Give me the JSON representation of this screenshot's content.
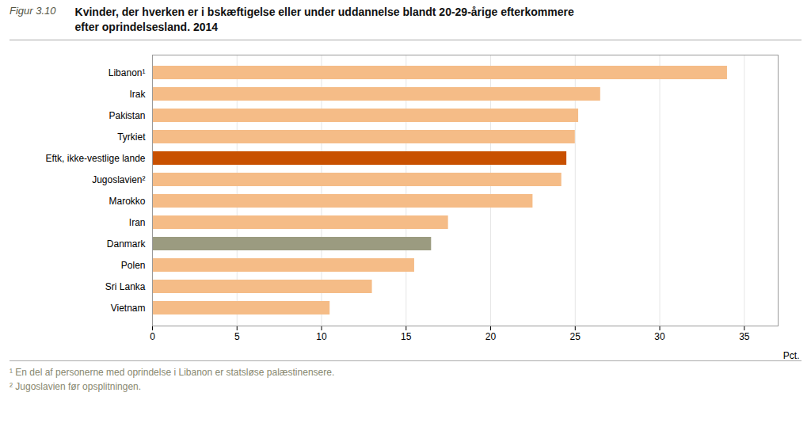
{
  "chart_data": {
    "type": "bar",
    "orientation": "horizontal",
    "figure_label": "Figur 3.10",
    "title": "Kvinder, der hverken er i bskæftigelse eller under uddannelse blandt 20-29-årige efterkommere\nefter oprindelsesland. 2014",
    "categories": [
      "Libanon¹",
      "Irak",
      "Pakistan",
      "Tyrkiet",
      "Eftk, ikke-vestlige lande",
      "Jugoslavien²",
      "Marokko",
      "Iran",
      "Danmark",
      "Polen",
      "Sri Lanka",
      "Vietnam"
    ],
    "values": [
      34,
      26.5,
      25.2,
      25.0,
      24.5,
      24.2,
      22.5,
      17.5,
      16.5,
      15.5,
      13.0,
      10.5
    ],
    "colors": [
      "#f5bc87",
      "#f5bc87",
      "#f5bc87",
      "#f5bc87",
      "#c85000",
      "#f5bc87",
      "#f5bc87",
      "#f5bc87",
      "#9b9b80",
      "#f5bc87",
      "#f5bc87",
      "#f5bc87"
    ],
    "xlabel": "Pct.",
    "xlim": [
      0,
      37
    ],
    "xticks": [
      0,
      5,
      10,
      15,
      20,
      25,
      30,
      35
    ],
    "grid": true,
    "annotations": [
      "¹  En del af personerne med oprindelse i Libanon er statsløse palæstinensere.",
      "²  Jugoslavien før opsplitningen."
    ]
  }
}
